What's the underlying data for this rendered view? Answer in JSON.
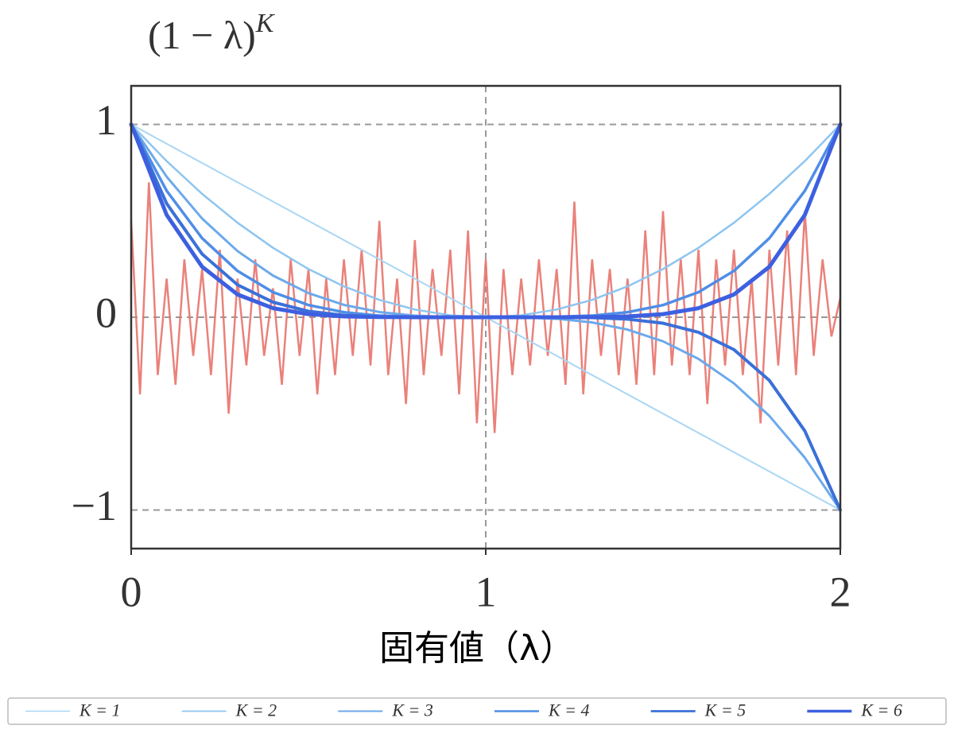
{
  "chart_data": {
    "type": "line",
    "title": "(1 − λ)",
    "title_superscript": "K",
    "x_label": "固有値（λ）",
    "xlim": [
      0,
      2
    ],
    "ylim": [
      -1.2,
      1.2
    ],
    "xticks": [
      0,
      1,
      2
    ],
    "yticks": [
      {
        "value": -1,
        "label": "−1"
      },
      0,
      1
    ],
    "grid": true,
    "legend_position": "bottom",
    "x": [
      0,
      0.1,
      0.2,
      0.3,
      0.4,
      0.5,
      0.6,
      0.7,
      0.8,
      0.9,
      1,
      1.1,
      1.2,
      1.3,
      1.4,
      1.5,
      1.6,
      1.7,
      1.8,
      1.9,
      2
    ],
    "series": [
      {
        "name": "K = 1",
        "color": "#a9d6f3",
        "width": 2,
        "values": [
          1,
          0.9,
          0.8,
          0.7,
          0.6,
          0.5,
          0.4,
          0.3,
          0.2,
          0.1,
          0,
          -0.1,
          -0.2,
          -0.3,
          -0.4,
          -0.5,
          -0.6,
          -0.7,
          -0.8,
          -0.9,
          -1
        ]
      },
      {
        "name": "K = 2",
        "color": "#8fc5ef",
        "width": 2.5,
        "values": [
          1,
          0.81,
          0.64,
          0.49,
          0.36,
          0.25,
          0.16,
          0.09,
          0.04,
          0.01,
          0,
          0.01,
          0.04,
          0.09,
          0.16,
          0.25,
          0.36,
          0.49,
          0.64,
          0.81,
          1
        ]
      },
      {
        "name": "K = 3",
        "color": "#6ca9ea",
        "width": 3,
        "values": [
          1,
          0.729,
          0.512,
          0.343,
          0.216,
          0.125,
          0.064,
          0.027,
          0.008,
          0.001,
          0,
          -0.001,
          -0.008,
          -0.027,
          -0.064,
          -0.125,
          -0.216,
          -0.343,
          -0.512,
          -0.729,
          -1
        ]
      },
      {
        "name": "K = 4",
        "color": "#4f8ee6",
        "width": 3.5,
        "values": [
          1,
          0.656,
          0.41,
          0.24,
          0.13,
          0.063,
          0.026,
          0.008,
          0.002,
          0,
          0,
          0,
          0.002,
          0.008,
          0.026,
          0.063,
          0.13,
          0.24,
          0.41,
          0.656,
          1
        ]
      },
      {
        "name": "K = 5",
        "color": "#3b70d8",
        "width": 4,
        "values": [
          1,
          0.59,
          0.328,
          0.168,
          0.078,
          0.031,
          0.01,
          0.002,
          0,
          0,
          0,
          0,
          0,
          -0.002,
          -0.01,
          -0.031,
          -0.078,
          -0.168,
          -0.328,
          -0.59,
          -1
        ]
      },
      {
        "name": "K = 6",
        "color": "#3d60e0",
        "width": 5,
        "values": [
          1,
          0.531,
          0.262,
          0.118,
          0.047,
          0.016,
          0.004,
          0.001,
          0,
          0,
          0,
          0,
          0,
          0.001,
          0.004,
          0.016,
          0.047,
          0.118,
          0.262,
          0.531,
          1
        ]
      }
    ],
    "noise": {
      "color": "#e8736c",
      "x": [
        0,
        0.025,
        0.05,
        0.075,
        0.1,
        0.125,
        0.15,
        0.175,
        0.2,
        0.225,
        0.25,
        0.275,
        0.3,
        0.325,
        0.35,
        0.375,
        0.4,
        0.425,
        0.45,
        0.475,
        0.5,
        0.525,
        0.55,
        0.575,
        0.6,
        0.625,
        0.65,
        0.675,
        0.7,
        0.725,
        0.75,
        0.775,
        0.8,
        0.825,
        0.85,
        0.875,
        0.9,
        0.925,
        0.95,
        0.975,
        1,
        1.025,
        1.05,
        1.075,
        1.1,
        1.125,
        1.15,
        1.175,
        1.2,
        1.225,
        1.25,
        1.275,
        1.3,
        1.325,
        1.35,
        1.375,
        1.4,
        1.425,
        1.45,
        1.475,
        1.5,
        1.525,
        1.55,
        1.575,
        1.6,
        1.625,
        1.65,
        1.675,
        1.7,
        1.725,
        1.75,
        1.775,
        1.8,
        1.825,
        1.85,
        1.875,
        1.9,
        1.925,
        1.95,
        1.975,
        2
      ],
      "values": [
        0.5,
        -0.4,
        0.7,
        -0.3,
        0.2,
        -0.35,
        0.3,
        -0.2,
        0.25,
        -0.3,
        0.35,
        -0.5,
        0.2,
        -0.25,
        0.3,
        -0.2,
        0.15,
        -0.35,
        0.3,
        -0.2,
        0.25,
        -0.4,
        0.2,
        -0.3,
        0.3,
        -0.2,
        0.35,
        -0.25,
        0.5,
        -0.3,
        0.2,
        -0.45,
        0.4,
        -0.3,
        0.25,
        -0.2,
        0.35,
        -0.4,
        0.45,
        -0.55,
        0.3,
        -0.6,
        0.25,
        -0.3,
        0.2,
        -0.25,
        0.3,
        -0.2,
        0.25,
        -0.35,
        0.6,
        -0.4,
        0.3,
        -0.2,
        0.25,
        -0.3,
        0.2,
        -0.35,
        0.45,
        -0.3,
        0.55,
        -0.25,
        0.3,
        -0.3,
        0.35,
        -0.45,
        0.3,
        -0.25,
        0.35,
        -0.3,
        0.2,
        -0.55,
        0.35,
        -0.25,
        0.45,
        -0.3,
        0.55,
        -0.2,
        0.3,
        -0.1,
        0.1
      ]
    }
  }
}
